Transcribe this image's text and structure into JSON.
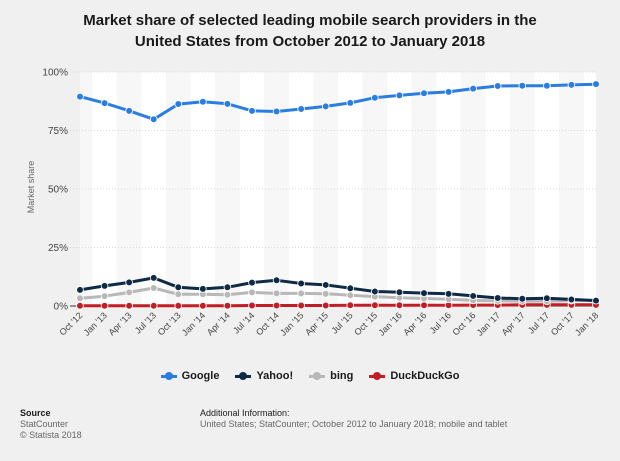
{
  "chart_data": {
    "type": "line",
    "title": "Market share of selected leading mobile search providers in the United States from October 2012 to January 2018",
    "title_lines": [
      "Market share of selected leading mobile search providers in the",
      "United States from October 2012 to January 2018"
    ],
    "xlabel": "",
    "ylabel": "Market share",
    "ylim": [
      0,
      100
    ],
    "yticks": [
      0,
      25,
      50,
      75,
      100
    ],
    "ytick_labels": [
      "0%",
      "25%",
      "50%",
      "75%",
      "100%"
    ],
    "grid": true,
    "legend_position": "bottom",
    "categories": [
      "Oct '12",
      "Jan '13",
      "Apr '13",
      "Jul '13",
      "Oct '13",
      "Jan '14",
      "Apr '14",
      "Jul '14",
      "Oct '14",
      "Jan '15",
      "Apr '15",
      "Jul '15",
      "Oct '15",
      "Jan '16",
      "Apr '16",
      "Jul '16",
      "Oct '16",
      "Jan '17",
      "Apr '17",
      "Jul '17",
      "Oct '17",
      "Jan '18"
    ],
    "series": [
      {
        "name": "Google",
        "color": "#2a7de1",
        "values": [
          89.5,
          86.7,
          83.4,
          79.8,
          86.3,
          87.3,
          86.4,
          83.4,
          83.1,
          84.2,
          85.3,
          86.8,
          89.0,
          90.0,
          90.9,
          91.5,
          92.9,
          94.0,
          94.1,
          94.1,
          94.5,
          94.8
        ]
      },
      {
        "name": "Yahoo!",
        "color": "#0f2a45",
        "values": [
          6.9,
          8.6,
          10.1,
          12.0,
          8.0,
          7.3,
          8.0,
          10.0,
          11.0,
          9.6,
          9.0,
          7.6,
          6.2,
          5.9,
          5.5,
          5.2,
          4.3,
          3.4,
          3.1,
          3.3,
          2.8,
          2.3
        ]
      },
      {
        "name": "bing",
        "color": "#b8b8b8",
        "values": [
          3.3,
          4.2,
          5.8,
          7.7,
          5.0,
          5.0,
          4.8,
          5.8,
          5.4,
          5.4,
          5.2,
          4.6,
          4.0,
          3.5,
          3.2,
          2.9,
          2.4,
          2.2,
          2.1,
          2.0,
          2.3,
          2.5
        ]
      },
      {
        "name": "DuckDuckGo",
        "color": "#c01f26",
        "values": [
          0.1,
          0.1,
          0.1,
          0.1,
          0.1,
          0.1,
          0.1,
          0.2,
          0.2,
          0.2,
          0.2,
          0.3,
          0.3,
          0.3,
          0.3,
          0.3,
          0.4,
          0.4,
          0.5,
          0.5,
          0.5,
          0.5
        ]
      }
    ]
  },
  "footer": {
    "source_heading": "Source",
    "source_lines": [
      "StatCounter",
      "© Statista 2018"
    ],
    "info_heading": "Additional Information:",
    "info_text": "United States; StatCounter; October 2012 to January 2018; mobile and tablet"
  }
}
